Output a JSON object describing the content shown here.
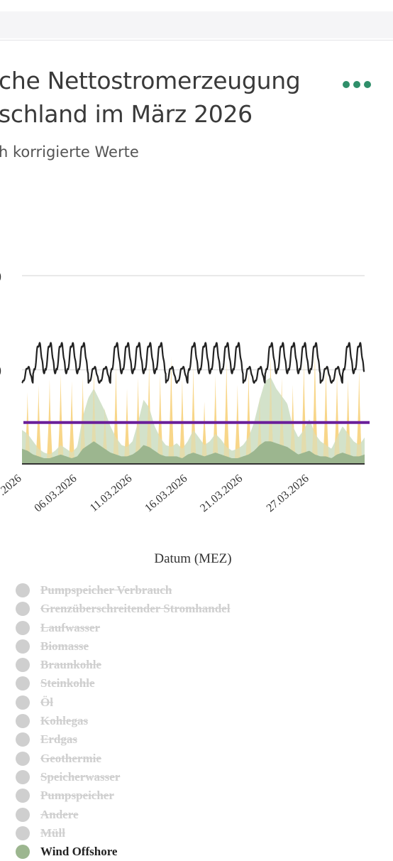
{
  "header": {
    "title": "che Nettostromerzeugung\nschland im März 2026",
    "subtitle": "h korrigierte Werte",
    "menu_icon": "ellipsis-horizontal-icon",
    "menu_color": "#2f8f6a"
  },
  "chart_data": {
    "type": "area",
    "xlabel": "Datum (MEZ)",
    "x_tick_labels": [
      ".2026",
      "06.03.2026",
      "11.03.2026",
      "16.03.2026",
      "21.03.2026",
      "27.03.2026"
    ],
    "x_ticks_iso": [
      "2026-03-01",
      "2026-03-06",
      "2026-03-11",
      "2026-03-16",
      "2026-03-21",
      "2026-03-27"
    ],
    "x_range": [
      "2026-03-01",
      "2026-04-01"
    ],
    "ylim": [
      0,
      100
    ],
    "y_tick_values": [
      0,
      50,
      100
    ],
    "y_tick_labels": [
      "",
      ")",
      ")"
    ],
    "grid": true,
    "colors": {
      "solar": "#f8d483",
      "wind_onshore": "#d3e2cb",
      "wind_offshore": "#9cb68f",
      "load": "#222222",
      "reference": "#6a1e9a",
      "grid": "#e2e2e2",
      "axis": "#333333"
    },
    "load_profile": {
      "weekday_peak": 65,
      "weekday_trough": 48,
      "weekend_peak": 52,
      "weekend_trough": 43
    },
    "reference_line": {
      "value": 22
    },
    "solar_daily_peaks": [
      38,
      42,
      45,
      48,
      44,
      46,
      50,
      30,
      52,
      40,
      46,
      54,
      48,
      57,
      45,
      52,
      33,
      47,
      55,
      42,
      50,
      36,
      58,
      46,
      42,
      55,
      60,
      52,
      48,
      45,
      50
    ],
    "wind_onshore_series": [
      18,
      16,
      12,
      8,
      6,
      5,
      7,
      10,
      8,
      6,
      9,
      25,
      35,
      40,
      34,
      28,
      20,
      14,
      10,
      9,
      12,
      22,
      34,
      30,
      20,
      14,
      10,
      9,
      11,
      8,
      12,
      18,
      14,
      10,
      12,
      16,
      13,
      9,
      7,
      8,
      10,
      14,
      22,
      34,
      44,
      46,
      40,
      36,
      32,
      20,
      14,
      18,
      24,
      16,
      12,
      10,
      8,
      14,
      20,
      16,
      12,
      10,
      14
    ],
    "wind_offshore_series": [
      8,
      7,
      5,
      4,
      3,
      3,
      4,
      5,
      4,
      3,
      4,
      8,
      10,
      12,
      10,
      8,
      6,
      5,
      4,
      4,
      5,
      7,
      10,
      9,
      7,
      5,
      4,
      4,
      4,
      3,
      5,
      6,
      5,
      4,
      5,
      6,
      5,
      4,
      3,
      3,
      4,
      5,
      7,
      10,
      12,
      12,
      11,
      10,
      9,
      7,
      5,
      6,
      7,
      5,
      4,
      4,
      3,
      5,
      6,
      5,
      4,
      4,
      5
    ],
    "legend_position": "bottom"
  },
  "legend": {
    "items": [
      {
        "label": "Pumpspeicher Verbrauch",
        "visible": false
      },
      {
        "label": "Grenzüberschreitender Stromhandel",
        "visible": false
      },
      {
        "label": "Laufwasser",
        "visible": false
      },
      {
        "label": "Biomasse",
        "visible": false
      },
      {
        "label": "Braunkohle",
        "visible": false
      },
      {
        "label": "Steinkohle",
        "visible": false
      },
      {
        "label": "Öl",
        "visible": false
      },
      {
        "label": "Kohlegas",
        "visible": false
      },
      {
        "label": "Erdgas",
        "visible": false
      },
      {
        "label": "Geothermie",
        "visible": false
      },
      {
        "label": "Speicherwasser",
        "visible": false
      },
      {
        "label": "Pumpspeicher",
        "visible": false
      },
      {
        "label": "Andere",
        "visible": false
      },
      {
        "label": "Müll",
        "visible": false
      },
      {
        "label": "Wind Offshore",
        "visible": true,
        "color": "#9cb68f"
      }
    ]
  }
}
